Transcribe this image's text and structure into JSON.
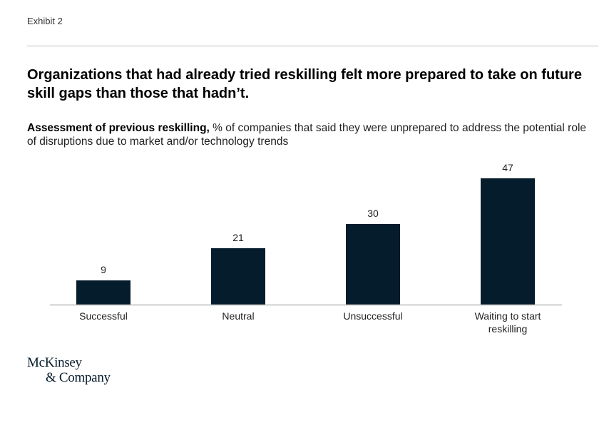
{
  "header": {
    "exhibit": "Exhibit 2",
    "title": "Organizations that had already tried reskilling felt more prepared to take on future skill gaps than those that hadn’t."
  },
  "subtitle": {
    "lead": "Assessment of previous reskilling,",
    "rest": " % of companies that said they were unprepared to address the potential role of disruptions due to market and/or technology trends"
  },
  "chart_data": {
    "type": "bar",
    "categories": [
      "Successful",
      "Neutral",
      "Unsuccessful",
      "Waiting to start reskilling"
    ],
    "category_lines": [
      [
        "Successful"
      ],
      [
        "Neutral"
      ],
      [
        "Unsuccessful"
      ],
      [
        "Waiting to start",
        "reskilling"
      ]
    ],
    "values": [
      9,
      21,
      30,
      47
    ],
    "data_labels": [
      "9",
      "21",
      "30",
      "47"
    ],
    "ylim": [
      0,
      47
    ],
    "grid": false,
    "bar_color": "#051c2c",
    "axis_color": "#bdbdbd"
  },
  "footer": {
    "logo_line1": "McKinsey",
    "logo_line2": "& Company"
  }
}
